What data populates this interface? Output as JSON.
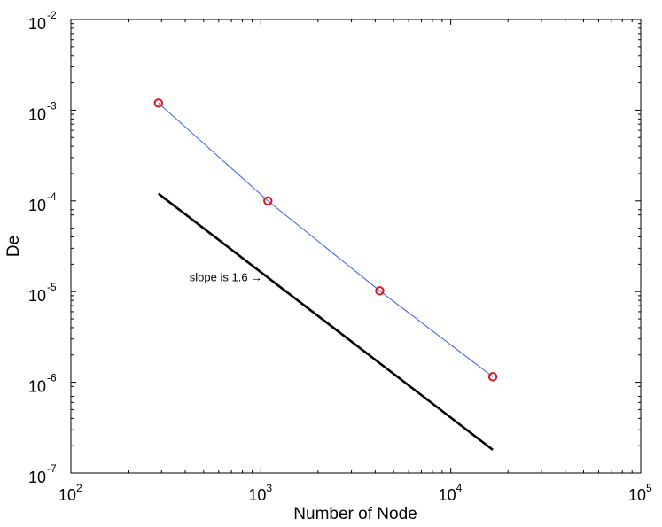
{
  "chart_data": {
    "type": "line",
    "x_scale": "log",
    "y_scale": "log",
    "xlim": [
      100,
      100000
    ],
    "ylim": [
      1e-07,
      0.01
    ],
    "xlabel": "Number of Node",
    "ylabel": "De",
    "x_ticks": [
      {
        "value": 100,
        "base": "10",
        "exp": "2"
      },
      {
        "value": 1000,
        "base": "10",
        "exp": "3"
      },
      {
        "value": 10000,
        "base": "10",
        "exp": "4"
      },
      {
        "value": 100000,
        "base": "10",
        "exp": "5"
      }
    ],
    "y_ticks": [
      {
        "value": 1e-07,
        "base": "10",
        "exp": "-7"
      },
      {
        "value": 1e-06,
        "base": "10",
        "exp": "-6"
      },
      {
        "value": 1e-05,
        "base": "10",
        "exp": "-5"
      },
      {
        "value": 0.0001,
        "base": "10",
        "exp": "-4"
      },
      {
        "value": 0.001,
        "base": "10",
        "exp": "-3"
      },
      {
        "value": 0.01,
        "base": "10",
        "exp": "-2"
      }
    ],
    "series": [
      {
        "x": [
          289,
          1089,
          4225,
          16641
        ],
        "y": [
          0.0012,
          0.0001,
          1.02e-05,
          1.15e-06
        ],
        "line_color": "#3a5bf0",
        "marker": "circle",
        "marker_color": "#e0121b"
      },
      {
        "x": [
          289,
          16641
        ],
        "y": [
          0.00012,
          1.8e-07
        ],
        "line_color": "#000000",
        "marker": "none"
      }
    ],
    "annotations": [
      {
        "text": "slope is 1.6 →",
        "x": 1020,
        "y": 1.42e-05
      }
    ],
    "grid": false,
    "box": true
  }
}
